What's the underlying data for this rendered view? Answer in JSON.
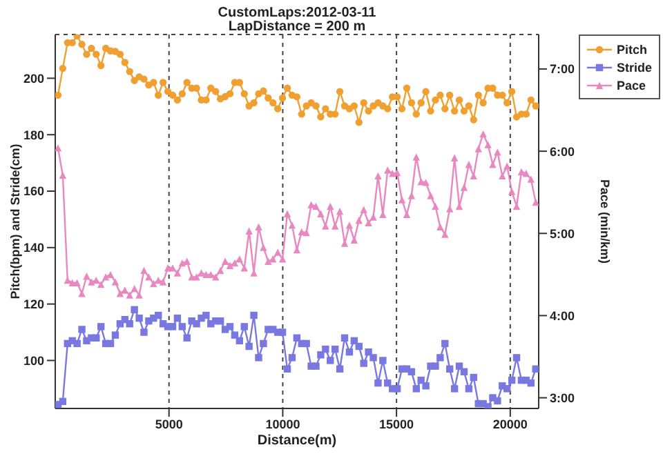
{
  "chart_data": {
    "type": "line",
    "title": "CustomLaps:2012-03-11",
    "subtitle": "LapDistance = 200 m",
    "xlabel": "Distance(m)",
    "ylabel": "Pitch(bpm) and Stride(cm)",
    "y2label": "Pace (min/km)",
    "x": [
      120,
      330,
      540,
      750,
      960,
      1170,
      1380,
      1590,
      1800,
      2010,
      2220,
      2430,
      2640,
      2850,
      3060,
      3270,
      3480,
      3690,
      3900,
      4110,
      4320,
      4530,
      4740,
      4950,
      5160,
      5370,
      5580,
      5790,
      6000,
      6210,
      6420,
      6630,
      6840,
      7050,
      7260,
      7470,
      7680,
      7890,
      8100,
      8310,
      8520,
      8730,
      8940,
      9150,
      9360,
      9570,
      9780,
      9990,
      10200,
      10410,
      10620,
      10830,
      11040,
      11250,
      11460,
      11670,
      11880,
      12090,
      12300,
      12510,
      12720,
      12930,
      13140,
      13350,
      13560,
      13770,
      13980,
      14190,
      14400,
      14610,
      14820,
      15030,
      15240,
      15450,
      15660,
      15870,
      16080,
      16290,
      16500,
      16710,
      16920,
      17130,
      17340,
      17550,
      17760,
      17970,
      18180,
      18390,
      18600,
      18810,
      19020,
      19230,
      19440,
      19650,
      19860,
      20070,
      20280,
      20490,
      20700,
      20910,
      21120
    ],
    "series": [
      {
        "name": "Pitch",
        "color": "#f0a030",
        "marker": "circle",
        "values": [
          194,
          203.5,
          212.6,
          212.6,
          215,
          212,
          208.5,
          210.6,
          208.5,
          204.5,
          210.6,
          209.7,
          209.5,
          208.5,
          205.6,
          202.4,
          199.2,
          200.5,
          199.7,
          197.6,
          198.5,
          194,
          198.5,
          195.3,
          194,
          192.3,
          194.5,
          198.5,
          196.5,
          196.5,
          192.3,
          192.3,
          196.5,
          195.3,
          192.7,
          193.5,
          194.5,
          198.5,
          198.5,
          194.5,
          190.2,
          191.3,
          194.5,
          195.5,
          193,
          191.3,
          189.2,
          193,
          196.5,
          194,
          193.4,
          187.3,
          190.2,
          191.3,
          190.2,
          186.3,
          189.2,
          187.3,
          187.3,
          195.3,
          190.2,
          189.2,
          190.2,
          184.4,
          191.3,
          188.4,
          190.2,
          191.3,
          190.2,
          189.2,
          193.4,
          193.4,
          189.2,
          196.5,
          191.3,
          187.3,
          191.3,
          195.3,
          188.4,
          192.3,
          194,
          189.2,
          194,
          188.4,
          192.3,
          188.4,
          190.2,
          185.3,
          194,
          191.3,
          196.5,
          196.5,
          194,
          194,
          191.3,
          195.3,
          186.3,
          187.3,
          187.3,
          192.3,
          190.2
        ]
      },
      {
        "name": "Stride",
        "color": "#7878e0",
        "marker": "square",
        "values": [
          84.4,
          85.5,
          106,
          107,
          106,
          111,
          107,
          108,
          108,
          112,
          106,
          106,
          109,
          113,
          114.5,
          113,
          118,
          115,
          110,
          114,
          115,
          116,
          113,
          112,
          112,
          115,
          112,
          108,
          114,
          113,
          115,
          116,
          113,
          114,
          114,
          111,
          112,
          109,
          107,
          112,
          105,
          116,
          101,
          106,
          111,
          111,
          110,
          110,
          97,
          101,
          108,
          106,
          106,
          98,
          98,
          102,
          104,
          100,
          104,
          97,
          108,
          103,
          107,
          105,
          99,
          103,
          101,
          92,
          100,
          92,
          90,
          90,
          97,
          97,
          96,
          90,
          93,
          91,
          98,
          98,
          101,
          106,
          97,
          90,
          98,
          96,
          90,
          94,
          84.7,
          84.7,
          83.6,
          86.8,
          85.7,
          91,
          90,
          93,
          101,
          93,
          93,
          92,
          97
        ]
      },
      {
        "name": "Pace",
        "color": "#e888c0",
        "marker": "triangle",
        "axis": "y2",
        "values": [
          6.04,
          5.71,
          4.43,
          4.4,
          4.4,
          4.27,
          4.48,
          4.41,
          4.43,
          4.38,
          4.47,
          4.5,
          4.41,
          4.27,
          4.31,
          4.25,
          4.33,
          4.25,
          4.55,
          4.47,
          4.39,
          4.43,
          4.41,
          4.58,
          4.58,
          4.52,
          4.64,
          4.66,
          4.47,
          4.47,
          4.52,
          4.5,
          4.5,
          4.47,
          4.55,
          4.66,
          4.61,
          4.64,
          4.69,
          4.58,
          5.03,
          4.52,
          5.08,
          4.83,
          4.66,
          4.69,
          4.77,
          4.69,
          5.24,
          5.1,
          4.8,
          5.02,
          5.01,
          5.35,
          5.33,
          5.24,
          5.09,
          5.33,
          5.09,
          5.27,
          4.88,
          5.1,
          4.92,
          5.16,
          5.29,
          5.13,
          5.2,
          5.7,
          5.23,
          5.77,
          5.73,
          5.74,
          5.41,
          5.23,
          5.46,
          5.93,
          5.63,
          5.62,
          5.46,
          5.33,
          5.08,
          4.99,
          5.3,
          5.92,
          5.33,
          5.56,
          5.84,
          5.7,
          6.03,
          6.21,
          6.08,
          5.84,
          5.99,
          5.7,
          5.82,
          5.51,
          5.33,
          5.75,
          5.73,
          5.66,
          5.38
        ]
      }
    ],
    "xlim": [
      0,
      21250
    ],
    "xticks": [
      5000,
      10000,
      15000,
      20000
    ],
    "ylim": [
      83,
      215.5
    ],
    "yticks": [
      100,
      120,
      140,
      160,
      180,
      200
    ],
    "y2lim": [
      2.87,
      7.42
    ],
    "y2ticks": [
      {
        "value": 3,
        "label": "3:00"
      },
      {
        "value": 4,
        "label": "4:00"
      },
      {
        "value": 5,
        "label": "5:00"
      },
      {
        "value": 6,
        "label": "6:00"
      },
      {
        "value": 7,
        "label": "7:00"
      }
    ],
    "grid": true,
    "legend": "right",
    "line_style": "solid"
  }
}
